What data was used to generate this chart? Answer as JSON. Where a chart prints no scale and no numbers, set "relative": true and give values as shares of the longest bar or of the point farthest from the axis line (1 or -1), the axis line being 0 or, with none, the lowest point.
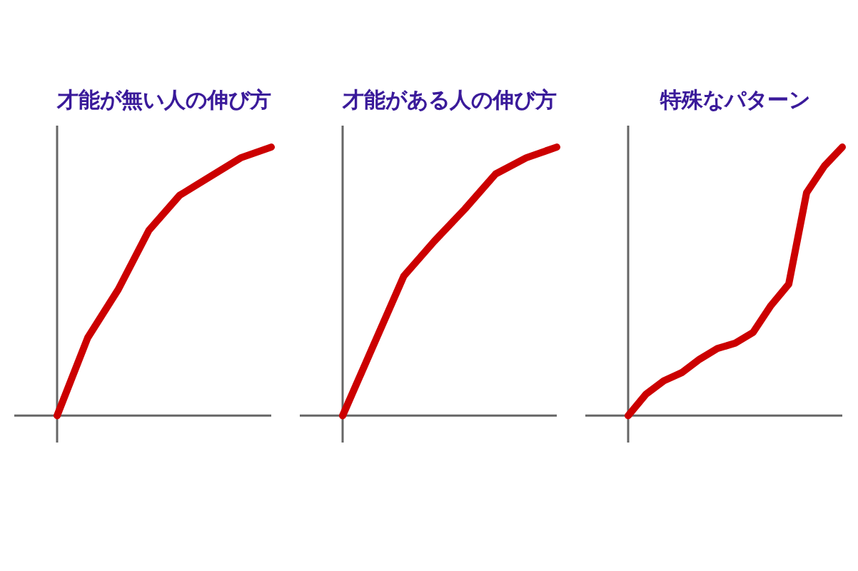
{
  "chart_data": [
    {
      "type": "line",
      "title": "才能が無い人の伸び方",
      "relative": true,
      "categories": [
        null,
        null,
        null,
        null,
        null,
        null,
        null,
        null
      ],
      "series": [
        {
          "color": "#cc0000",
          "values": [
            0,
            0.29,
            0.47,
            0.69,
            0.82,
            0.89,
            0.96,
            1
          ]
        }
      ],
      "marker": "none",
      "legend": false
    },
    {
      "type": "line",
      "title": "才能がある人の伸び方",
      "relative": true,
      "categories": [
        null,
        null,
        null,
        null,
        null,
        null,
        null,
        null
      ],
      "series": [
        {
          "color": "#cc0000",
          "values": [
            0,
            0.26,
            0.52,
            0.65,
            0.77,
            0.9,
            0.96,
            1
          ]
        }
      ],
      "marker": "none",
      "legend": false
    },
    {
      "type": "line",
      "title": "特殊なパターン",
      "relative": true,
      "categories": [
        null,
        null,
        null,
        null,
        null,
        null,
        null,
        null,
        null,
        null,
        null,
        null,
        null
      ],
      "series": [
        {
          "color": "#cc0000",
          "values": [
            0,
            0.08,
            0.13,
            0.16,
            0.21,
            0.25,
            0.27,
            0.31,
            0.41,
            0.49,
            0.83,
            0.93,
            1
          ]
        }
      ],
      "marker": "none",
      "legend": false
    }
  ]
}
